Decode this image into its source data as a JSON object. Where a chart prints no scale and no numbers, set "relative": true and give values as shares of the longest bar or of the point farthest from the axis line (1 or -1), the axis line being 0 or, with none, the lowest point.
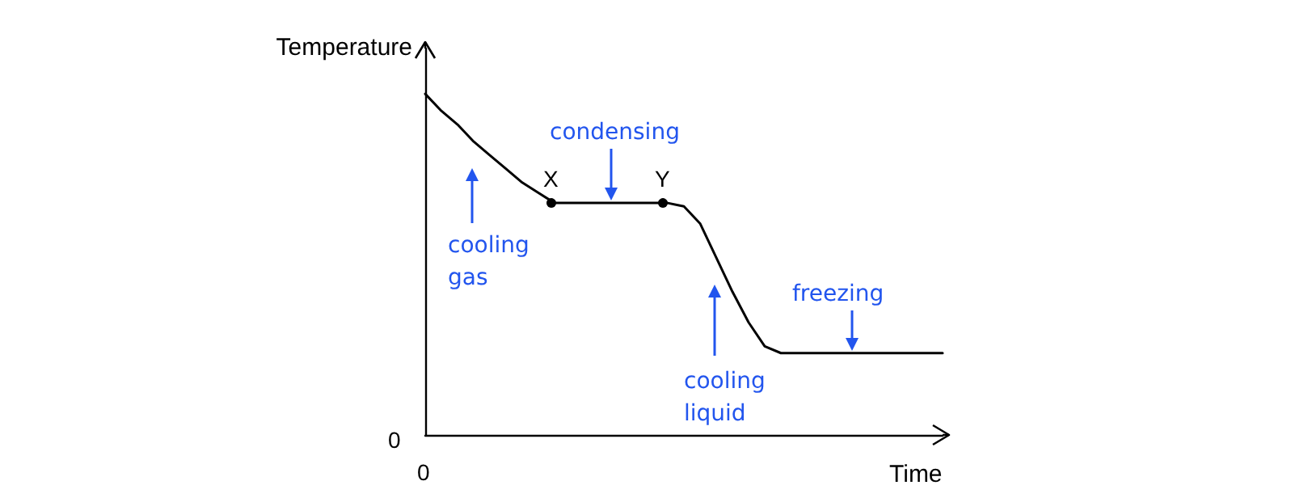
{
  "chart_data": {
    "type": "line",
    "relative": true,
    "xlabel": "Time",
    "ylabel": "Temperature",
    "marker": "none",
    "categories": [
      null,
      null,
      null,
      null,
      null,
      null,
      null,
      null,
      null,
      null,
      null,
      null,
      null,
      null,
      null,
      null,
      null,
      null,
      null,
      null,
      null,
      null,
      null,
      null,
      null,
      null,
      null,
      null,
      null,
      null,
      null,
      null,
      null
    ],
    "series": [
      {
        "color": "#000000",
        "values": [
          1,
          0.95,
          0.91,
          0.86,
          0.82,
          0.78,
          0.74,
          0.71,
          0.68,
          0.68,
          0.68,
          0.68,
          0.68,
          0.68,
          0.68,
          0.68,
          0.67,
          0.62,
          0.52,
          0.42,
          0.33,
          0.26,
          0.24,
          0.24,
          0.24,
          0.24,
          0.24,
          0.24,
          0.24,
          0.24,
          0.24,
          0.24,
          0.24
        ]
      }
    ],
    "annotations": [
      "0",
      "0",
      {
        "text": "X",
        "y": 0.68
      },
      {
        "text": "Y",
        "y": 0.68
      },
      "condensing",
      "cooling\ngas",
      "cooling\nliquid",
      "freezing"
    ]
  }
}
